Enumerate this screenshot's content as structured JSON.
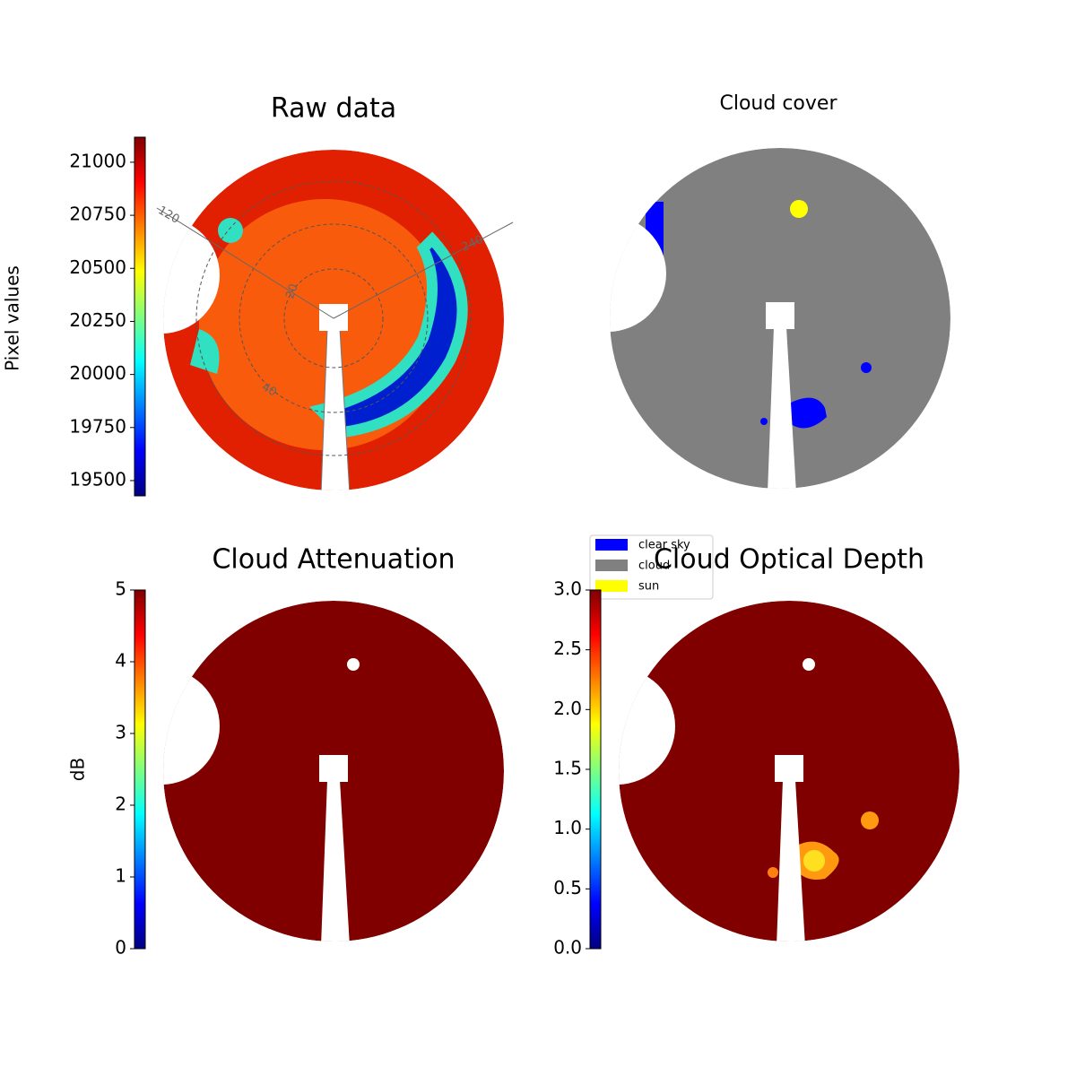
{
  "chart_data": [
    {
      "type": "image",
      "title": "Raw data",
      "colorbar_label": "Pixel values",
      "colormap": "jet",
      "ylim": [
        19428,
        21118
      ],
      "yticks": [
        19500,
        19750,
        20000,
        20250,
        20500,
        20750,
        21000
      ],
      "annotations": [
        "120",
        "240",
        "20",
        "40"
      ]
    },
    {
      "type": "image",
      "title": "Cloud cover",
      "legend": [
        {
          "name": "clear sky",
          "color": "#0000ff"
        },
        {
          "name": "cloud",
          "color": "#808080"
        },
        {
          "name": "sun",
          "color": "#ffff00"
        }
      ]
    },
    {
      "type": "image",
      "title": "Cloud Attenuation",
      "colorbar_label": "dB",
      "colormap": "jet",
      "ylim": [
        0,
        5
      ],
      "yticks": [
        0,
        1,
        2,
        3,
        4,
        5
      ]
    },
    {
      "type": "image",
      "title": "Cloud Optical Depth",
      "colormap": "jet",
      "ylim": [
        0,
        3
      ],
      "yticks": [
        {
          "value": 0,
          "label": "0.0"
        },
        0.5,
        {
          "value": 1,
          "label": "1.0"
        },
        1.5,
        {
          "value": 2,
          "label": "2.0"
        },
        2.5,
        {
          "value": 3,
          "label": "3.0"
        }
      ]
    }
  ]
}
